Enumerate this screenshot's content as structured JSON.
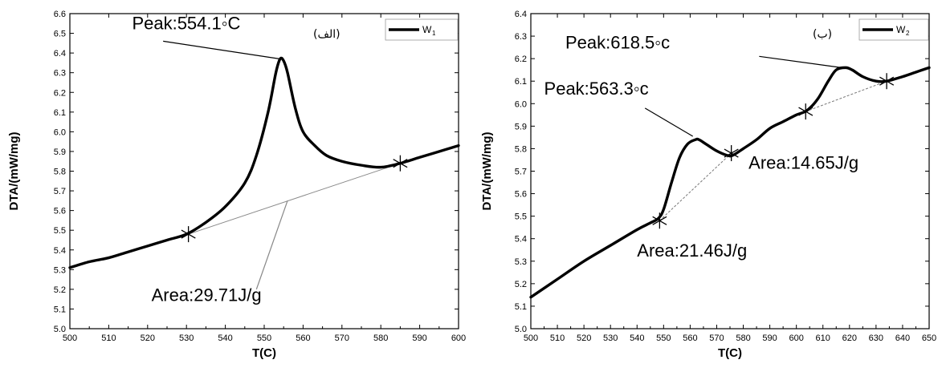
{
  "chart_data": [
    {
      "type": "line",
      "xlabel": "T(C)",
      "ylabel": "DTA/(mW/mg)",
      "xlim": [
        500,
        600
      ],
      "ylim": [
        5.0,
        6.6
      ],
      "xticks": [
        500,
        510,
        520,
        530,
        540,
        550,
        560,
        570,
        580,
        590,
        600
      ],
      "yticks": [
        5.0,
        5.1,
        5.2,
        5.3,
        5.4,
        5.5,
        5.6,
        5.7,
        5.8,
        5.9,
        6.0,
        6.1,
        6.2,
        6.3,
        6.4,
        6.5,
        6.6
      ],
      "tick_labels_x": [
        "500",
        "510",
        "520",
        "530",
        "540",
        "550",
        "560",
        "570",
        "580",
        "590",
        "600"
      ],
      "tick_labels_y": [
        "5.0",
        "5.1",
        "5.2",
        "5.3",
        "5.4",
        "5.5",
        "5.6",
        "5.7",
        "5.8",
        "5.9",
        "6.0",
        "6.1",
        "6.2",
        "6.3",
        "6.4",
        "6.5",
        "6.6"
      ],
      "panel_tag": "(الف)",
      "legend": {
        "label": "W",
        "subscript": "1",
        "position": "top-right"
      },
      "series": [
        {
          "name": "W1",
          "x": [
            500,
            505,
            510,
            515,
            520,
            525,
            530,
            535,
            540,
            545,
            548,
            551,
            553,
            554.1,
            555,
            556,
            558,
            560,
            563,
            566,
            570,
            575,
            580,
            585,
            590,
            595,
            600
          ],
          "y": [
            5.31,
            5.34,
            5.36,
            5.39,
            5.42,
            5.45,
            5.48,
            5.54,
            5.62,
            5.74,
            5.88,
            6.1,
            6.3,
            6.37,
            6.36,
            6.3,
            6.12,
            6.0,
            5.93,
            5.88,
            5.85,
            5.83,
            5.82,
            5.84,
            5.87,
            5.9,
            5.93
          ]
        }
      ],
      "baselines": [
        {
          "x": [
            530.5,
            585
          ],
          "y": [
            5.48,
            5.84
          ]
        }
      ],
      "markers": [
        {
          "x": 530.5,
          "y": 5.48
        },
        {
          "x": 585,
          "y": 5.84
        }
      ],
      "annotations": [
        {
          "text": "Peak:554.1◦C",
          "anchor_x": 516,
          "anchor_y": 6.52,
          "leader_from": [
            524,
            6.46
          ],
          "leader_to": [
            554.1,
            6.37
          ]
        },
        {
          "text": "Area:29.71J/g",
          "anchor_x": 521,
          "anchor_y": 5.14,
          "leader_from": [
            548,
            5.2
          ],
          "leader_to": [
            556,
            5.65
          ]
        }
      ]
    },
    {
      "type": "line",
      "xlabel": "T(C)",
      "ylabel": "DTA/(mW/mg)",
      "xlim": [
        500,
        650
      ],
      "ylim": [
        5.0,
        6.4
      ],
      "xticks": [
        500,
        510,
        520,
        530,
        540,
        550,
        560,
        570,
        580,
        590,
        600,
        610,
        620,
        630,
        640,
        650
      ],
      "yticks": [
        5.0,
        5.1,
        5.2,
        5.3,
        5.4,
        5.5,
        5.6,
        5.7,
        5.8,
        5.9,
        6.0,
        6.1,
        6.2,
        6.3,
        6.4
      ],
      "tick_labels_x": [
        "500",
        "510",
        "520",
        "530",
        "540",
        "550",
        "560",
        "570",
        "580",
        "590",
        "600",
        "610",
        "620",
        "630",
        "640",
        "650"
      ],
      "tick_labels_y": [
        "5.0",
        "5.1",
        "5.2",
        "5.3",
        "5.4",
        "5.5",
        "5.6",
        "5.7",
        "5.8",
        "5.9",
        "6.0",
        "6.1",
        "6.2",
        "6.3",
        "6.4"
      ],
      "panel_tag": "(ب)",
      "legend": {
        "label": "W",
        "subscript": "2",
        "position": "top-right"
      },
      "series": [
        {
          "name": "W2",
          "x": [
            500,
            510,
            520,
            530,
            540,
            545,
            548,
            550,
            553,
            556,
            559,
            562,
            563.3,
            566,
            570,
            574,
            576,
            580,
            585,
            590,
            595,
            600,
            604,
            608,
            612,
            615,
            618.5,
            621,
            625,
            630,
            634,
            640,
            645,
            650
          ],
          "y": [
            5.14,
            5.22,
            5.3,
            5.37,
            5.44,
            5.47,
            5.49,
            5.53,
            5.65,
            5.76,
            5.82,
            5.84,
            5.84,
            5.82,
            5.79,
            5.77,
            5.77,
            5.8,
            5.84,
            5.89,
            5.92,
            5.95,
            5.97,
            6.02,
            6.1,
            6.15,
            6.16,
            6.15,
            6.12,
            6.1,
            6.1,
            6.12,
            6.14,
            6.16
          ]
        }
      ],
      "baselines": [
        {
          "x": [
            548.5,
            575.5
          ],
          "y": [
            5.48,
            5.78
          ]
        },
        {
          "x": [
            603.5,
            634
          ],
          "y": [
            5.965,
            6.1
          ]
        }
      ],
      "markers": [
        {
          "x": 548.5,
          "y": 5.48
        },
        {
          "x": 575.5,
          "y": 5.78
        },
        {
          "x": 603.5,
          "y": 5.965
        },
        {
          "x": 634,
          "y": 6.1
        }
      ],
      "annotations": [
        {
          "text": "Peak:618.5◦c",
          "anchor_x": 513,
          "anchor_y": 6.245,
          "leader_from": [
            586,
            6.21
          ],
          "leader_to": [
            617,
            6.16
          ]
        },
        {
          "text": "Peak:563.3◦c",
          "anchor_x": 505,
          "anchor_y": 6.04,
          "leader_from": [
            543,
            5.98
          ],
          "leader_to": [
            561,
            5.855
          ]
        },
        {
          "text": "Area:14.65J/g",
          "anchor_x": 582,
          "anchor_y": 5.71,
          "leader_from": null,
          "leader_to": null
        },
        {
          "text": "Area:21.46J/g",
          "anchor_x": 540,
          "anchor_y": 5.32,
          "leader_from": null,
          "leader_to": null
        }
      ]
    }
  ]
}
